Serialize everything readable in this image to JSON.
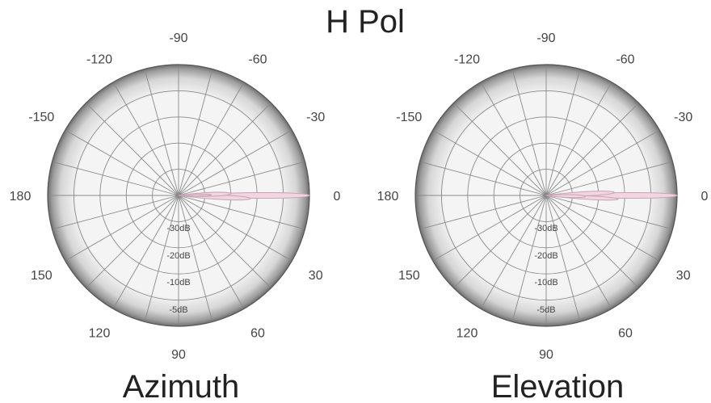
{
  "chart_data": {
    "type": "polar",
    "title": "H Pol",
    "ring_labels": [
      "-30dB",
      "-20dB",
      "-10dB",
      "-5dB"
    ],
    "angle_ticks": [
      {
        "angle": -90,
        "label": "-90"
      },
      {
        "angle": -60,
        "label": "-60"
      },
      {
        "angle": -30,
        "label": "-30"
      },
      {
        "angle": 0,
        "label": "0"
      },
      {
        "angle": 30,
        "label": "30"
      },
      {
        "angle": 60,
        "label": "60"
      },
      {
        "angle": 90,
        "label": "90"
      },
      {
        "angle": 120,
        "label": "120"
      },
      {
        "angle": 150,
        "label": "150"
      },
      {
        "angle": 180,
        "label": "180"
      },
      {
        "angle": -150,
        "label": "-150"
      },
      {
        "angle": -120,
        "label": "-120"
      }
    ],
    "charts": [
      {
        "subtitle": "Azimuth",
        "lobes": [
          {
            "angle": 0,
            "width_deg": 3.5,
            "level": 1.0
          },
          {
            "angle": 2.5,
            "width_deg": 5,
            "level": 0.55
          },
          {
            "angle": -2,
            "width_deg": 6,
            "level": 0.4
          },
          {
            "angle": -1,
            "width_deg": 4,
            "level": 0.25
          }
        ]
      },
      {
        "subtitle": "Elevation",
        "lobes": [
          {
            "angle": 0,
            "width_deg": 3.5,
            "level": 1.0
          },
          {
            "angle": 3,
            "width_deg": 4,
            "level": 0.55
          },
          {
            "angle": -2.5,
            "width_deg": 5,
            "level": 0.52
          },
          {
            "angle": 1.5,
            "width_deg": 6,
            "level": 0.3
          }
        ]
      }
    ]
  }
}
